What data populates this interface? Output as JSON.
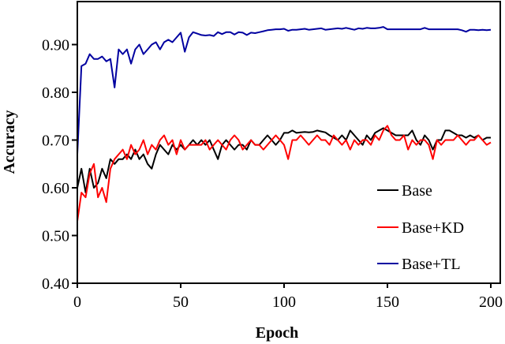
{
  "chart_data": {
    "type": "line",
    "title": "",
    "xlabel": "Epoch",
    "ylabel": "Accuracy",
    "xlim": [
      0,
      200
    ],
    "ylim": [
      0.4,
      0.99
    ],
    "x_ticks": [
      0,
      50,
      100,
      150,
      200
    ],
    "x_tick_labels": [
      "0",
      "50",
      "100",
      "150",
      "200"
    ],
    "y_ticks": [
      0.4,
      0.5,
      0.6,
      0.7,
      0.8,
      0.9
    ],
    "y_tick_labels": [
      "0.40",
      "0.50",
      "0.60",
      "0.70",
      "0.80",
      "0.90"
    ],
    "grid": false,
    "legend_position": "lower right (inside plot)",
    "x": [
      0,
      2,
      4,
      6,
      8,
      10,
      12,
      14,
      16,
      18,
      20,
      22,
      24,
      26,
      28,
      30,
      32,
      34,
      36,
      38,
      40,
      42,
      44,
      46,
      48,
      50,
      52,
      54,
      56,
      58,
      60,
      62,
      64,
      66,
      68,
      70,
      72,
      74,
      76,
      78,
      80,
      82,
      84,
      86,
      88,
      90,
      92,
      94,
      96,
      98,
      100,
      102,
      104,
      106,
      108,
      110,
      112,
      114,
      116,
      118,
      120,
      122,
      124,
      126,
      128,
      130,
      132,
      134,
      136,
      138,
      140,
      142,
      144,
      146,
      148,
      150,
      152,
      154,
      156,
      158,
      160,
      162,
      164,
      166,
      168,
      170,
      172,
      174,
      176,
      178,
      180,
      182,
      184,
      186,
      188,
      190,
      192,
      194,
      196,
      198,
      200
    ],
    "series": [
      {
        "name": "Base",
        "color": "#000000",
        "values": [
          0.6,
          0.64,
          0.59,
          0.64,
          0.6,
          0.61,
          0.64,
          0.62,
          0.66,
          0.65,
          0.66,
          0.66,
          0.67,
          0.66,
          0.68,
          0.66,
          0.67,
          0.65,
          0.64,
          0.67,
          0.69,
          0.68,
          0.67,
          0.69,
          0.68,
          0.69,
          0.68,
          0.69,
          0.7,
          0.69,
          0.7,
          0.69,
          0.7,
          0.68,
          0.66,
          0.69,
          0.7,
          0.69,
          0.68,
          0.69,
          0.69,
          0.68,
          0.7,
          0.69,
          0.69,
          0.7,
          0.71,
          0.7,
          0.69,
          0.7,
          0.715,
          0.715,
          0.72,
          0.715,
          0.716,
          0.717,
          0.716,
          0.717,
          0.72,
          0.718,
          0.716,
          0.71,
          0.705,
          0.7,
          0.71,
          0.7,
          0.72,
          0.71,
          0.7,
          0.69,
          0.71,
          0.7,
          0.715,
          0.72,
          0.725,
          0.72,
          0.715,
          0.71,
          0.71,
          0.71,
          0.71,
          0.72,
          0.7,
          0.69,
          0.71,
          0.7,
          0.68,
          0.7,
          0.7,
          0.72,
          0.72,
          0.715,
          0.71,
          0.71,
          0.705,
          0.71,
          0.705,
          0.71,
          0.7,
          0.705,
          0.705
        ]
      },
      {
        "name": "Base+KD",
        "color": "#ff0000",
        "values": [
          0.53,
          0.59,
          0.58,
          0.63,
          0.65,
          0.58,
          0.6,
          0.57,
          0.64,
          0.66,
          0.67,
          0.68,
          0.66,
          0.69,
          0.67,
          0.68,
          0.7,
          0.67,
          0.69,
          0.68,
          0.7,
          0.71,
          0.69,
          0.7,
          0.67,
          0.7,
          0.68,
          0.69,
          0.69,
          0.69,
          0.69,
          0.7,
          0.68,
          0.69,
          0.7,
          0.69,
          0.68,
          0.7,
          0.71,
          0.7,
          0.68,
          0.69,
          0.7,
          0.69,
          0.69,
          0.68,
          0.69,
          0.7,
          0.71,
          0.7,
          0.69,
          0.66,
          0.7,
          0.7,
          0.71,
          0.7,
          0.69,
          0.7,
          0.71,
          0.7,
          0.7,
          0.69,
          0.71,
          0.7,
          0.69,
          0.7,
          0.68,
          0.7,
          0.69,
          0.7,
          0.7,
          0.69,
          0.71,
          0.7,
          0.72,
          0.73,
          0.71,
          0.7,
          0.7,
          0.71,
          0.68,
          0.7,
          0.69,
          0.7,
          0.7,
          0.69,
          0.66,
          0.7,
          0.69,
          0.7,
          0.7,
          0.7,
          0.71,
          0.7,
          0.69,
          0.7,
          0.7,
          0.71,
          0.7,
          0.69,
          0.695
        ]
      },
      {
        "name": "Base+TL",
        "color": "#0000a0",
        "values": [
          0.67,
          0.855,
          0.86,
          0.88,
          0.87,
          0.87,
          0.875,
          0.865,
          0.87,
          0.81,
          0.89,
          0.88,
          0.89,
          0.86,
          0.89,
          0.9,
          0.88,
          0.89,
          0.9,
          0.905,
          0.89,
          0.905,
          0.91,
          0.905,
          0.915,
          0.925,
          0.885,
          0.915,
          0.926,
          0.923,
          0.92,
          0.919,
          0.92,
          0.918,
          0.926,
          0.922,
          0.926,
          0.926,
          0.921,
          0.926,
          0.925,
          0.92,
          0.925,
          0.924,
          0.926,
          0.928,
          0.93,
          0.931,
          0.932,
          0.932,
          0.933,
          0.929,
          0.931,
          0.931,
          0.932,
          0.933,
          0.931,
          0.932,
          0.933,
          0.934,
          0.931,
          0.932,
          0.933,
          0.934,
          0.933,
          0.935,
          0.933,
          0.931,
          0.934,
          0.933,
          0.935,
          0.934,
          0.934,
          0.935,
          0.937,
          0.932,
          0.932,
          0.932,
          0.932,
          0.932,
          0.932,
          0.932,
          0.932,
          0.932,
          0.935,
          0.932,
          0.932,
          0.932,
          0.932,
          0.932,
          0.932,
          0.932,
          0.932,
          0.93,
          0.927,
          0.931,
          0.931,
          0.93,
          0.931,
          0.93,
          0.931
        ]
      }
    ]
  },
  "legend": {
    "items": [
      {
        "label": "Base",
        "color": "#000000"
      },
      {
        "label": "Base+KD",
        "color": "#ff0000"
      },
      {
        "label": "Base+TL",
        "color": "#0000a0"
      }
    ]
  }
}
